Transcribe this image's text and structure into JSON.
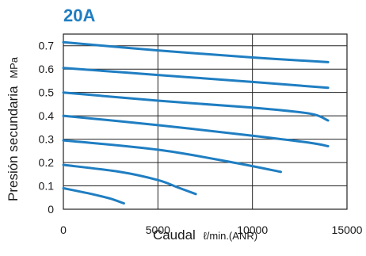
{
  "chart_data": {
    "type": "line",
    "title": "20A",
    "xlabel": "Caudal",
    "xlabel_unit": "ℓ/min.(ANR)",
    "ylabel": "Presión secundaria",
    "ylabel_unit": "MPa",
    "xlim": [
      0,
      15000
    ],
    "ylim": [
      0,
      0.75
    ],
    "x_ticks": [
      "0",
      "5000",
      "10000",
      "15000"
    ],
    "y_ticks": [
      "0",
      "0.1",
      "0.2",
      "0.3",
      "0.4",
      "0.5",
      "0.6",
      "0.7"
    ],
    "grid": true,
    "line_color": "#1f7ec2",
    "series": [
      {
        "x": [
          0,
          5000,
          10000,
          14000
        ],
        "y": [
          0.715,
          0.68,
          0.65,
          0.63
        ]
      },
      {
        "x": [
          0,
          5000,
          10000,
          14000
        ],
        "y": [
          0.605,
          0.575,
          0.545,
          0.52
        ]
      },
      {
        "x": [
          0,
          5000,
          10000,
          13000,
          14000
        ],
        "y": [
          0.5,
          0.465,
          0.435,
          0.41,
          0.38
        ]
      },
      {
        "x": [
          0,
          5000,
          10000,
          13000,
          14000
        ],
        "y": [
          0.4,
          0.36,
          0.315,
          0.285,
          0.27
        ]
      },
      {
        "x": [
          0,
          5000,
          9000,
          11500
        ],
        "y": [
          0.295,
          0.255,
          0.2,
          0.16
        ]
      },
      {
        "x": [
          0,
          3000,
          5000,
          6000,
          7000
        ],
        "y": [
          0.19,
          0.16,
          0.125,
          0.095,
          0.065
        ]
      },
      {
        "x": [
          0,
          1500,
          2500,
          3200
        ],
        "y": [
          0.09,
          0.065,
          0.045,
          0.025
        ]
      }
    ]
  }
}
